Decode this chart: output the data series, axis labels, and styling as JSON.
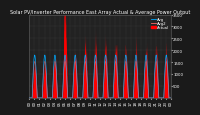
{
  "title": "Solar PV/Inverter Performance East Array Actual & Average Power Output",
  "bg_color": "#1a1a1a",
  "plot_bg_color": "#222222",
  "bar_color": "#ff0000",
  "avg_line_color": "#00aaff",
  "avg_line_color2": "#ff6666",
  "grid_color": "#555555",
  "grid_style": ":",
  "ylabel_right": true,
  "ylim": [
    0,
    3500
  ],
  "ytick_values": [
    500,
    1000,
    1500,
    2000,
    2500,
    3000,
    3500
  ],
  "title_fontsize": 3.5,
  "tick_fontsize": 2.8,
  "legend_fontsize": 2.8,
  "num_days": 14,
  "pts_per_day": 120
}
